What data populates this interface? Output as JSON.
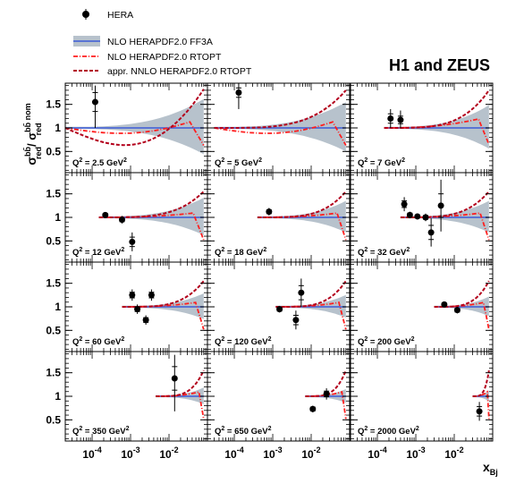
{
  "chart_data": {
    "type": "scatter",
    "title": "H1 and ZEUS",
    "legend": [
      {
        "label": "HERA",
        "style": "marker"
      },
      {
        "label": "NLO HERAPDF2.0 FF3A",
        "style": "band"
      },
      {
        "label": "NLO HERAPDF2.0 RTOPT",
        "style": "dashdot"
      },
      {
        "label": "appr. NNLO HERAPDF2.0 RTOPT",
        "style": "dashed"
      }
    ],
    "ylabel": {
      "sigma": "σ",
      "sup_num": "bb̄",
      "sub_num": "red",
      "slash": "/ σ",
      "sup_den": "bb̄ nom",
      "sub_den": "red"
    },
    "xlabel": {
      "main": "x",
      "sub": "Bj"
    },
    "x_scale": "log",
    "xlim": [
      2e-05,
      0.1
    ],
    "ylim": [
      0.05,
      1.95
    ],
    "y_ticks": [
      "0.5",
      "1",
      "1.5"
    ],
    "x_ticks": [
      {
        "base": "10",
        "exp": "-4"
      },
      {
        "base": "10",
        "exp": "-3"
      },
      {
        "base": "10",
        "exp": "-2"
      }
    ],
    "colors": {
      "band": "#b7c2cc",
      "central": "#3b5bd6",
      "nlo_rtopt": "#ff1f1f",
      "nnlo_rtopt": "#b3001b",
      "data": "#000000"
    },
    "panels": [
      {
        "label_pre": "Q",
        "label_sup": "2",
        "label_post": " = 2.5 GeV",
        "label_unit_sup": "2",
        "points": [
          {
            "x": 0.00012,
            "y": 1.55,
            "err_lo": 0.55,
            "err_hi": 0.35,
            "stat": 0.2
          }
        ]
      },
      {
        "label_pre": "Q",
        "label_sup": "2",
        "label_post": " = 5 GeV",
        "label_unit_sup": "2",
        "points": [
          {
            "x": 0.00013,
            "y": 1.75,
            "err_lo": 0.35,
            "err_hi": 0.2,
            "stat": 0.1
          }
        ]
      },
      {
        "label_pre": "Q",
        "label_sup": "2",
        "label_post": " = 7 GeV",
        "label_unit_sup": "2",
        "points": [
          {
            "x": 0.00022,
            "y": 1.2,
            "err_lo": 0.2,
            "err_hi": 0.2,
            "stat": 0.1
          },
          {
            "x": 0.0004,
            "y": 1.17,
            "err_lo": 0.18,
            "err_hi": 0.2,
            "stat": 0.08
          }
        ]
      },
      {
        "label_pre": "Q",
        "label_sup": "2",
        "label_post": " = 12 GeV",
        "label_unit_sup": "2",
        "points": [
          {
            "x": 0.00022,
            "y": 1.05,
            "err_lo": 0.06,
            "err_hi": 0.06,
            "stat": 0.03
          },
          {
            "x": 0.0006,
            "y": 0.95,
            "err_lo": 0.08,
            "err_hi": 0.08,
            "stat": 0.04
          },
          {
            "x": 0.0011,
            "y": 0.48,
            "err_lo": 0.2,
            "err_hi": 0.2,
            "stat": 0.1
          }
        ]
      },
      {
        "label_pre": "Q",
        "label_sup": "2",
        "label_post": " = 18 GeV",
        "label_unit_sup": "2",
        "points": [
          {
            "x": 0.0008,
            "y": 1.12,
            "err_lo": 0.08,
            "err_hi": 0.08,
            "stat": 0.04
          }
        ]
      },
      {
        "label_pre": "Q",
        "label_sup": "2",
        "label_post": " = 32 GeV",
        "label_unit_sup": "2",
        "points": [
          {
            "x": 0.0005,
            "y": 1.28,
            "err_lo": 0.15,
            "err_hi": 0.15,
            "stat": 0.07
          },
          {
            "x": 0.0007,
            "y": 1.05,
            "err_lo": 0.07,
            "err_hi": 0.07,
            "stat": 0.04
          },
          {
            "x": 0.0011,
            "y": 1.02,
            "err_lo": 0.06,
            "err_hi": 0.06,
            "stat": 0.03
          },
          {
            "x": 0.0018,
            "y": 1.0,
            "err_lo": 0.08,
            "err_hi": 0.08,
            "stat": 0.04
          },
          {
            "x": 0.0025,
            "y": 0.68,
            "err_lo": 0.3,
            "err_hi": 0.3,
            "stat": 0.15
          },
          {
            "x": 0.0045,
            "y": 1.25,
            "err_lo": 0.55,
            "err_hi": 0.55,
            "stat": 0.25
          }
        ]
      },
      {
        "label_pre": "Q",
        "label_sup": "2",
        "label_post": " = 60 GeV",
        "label_unit_sup": "2",
        "points": [
          {
            "x": 0.0011,
            "y": 1.25,
            "err_lo": 0.12,
            "err_hi": 0.12,
            "stat": 0.06
          },
          {
            "x": 0.0015,
            "y": 0.95,
            "err_lo": 0.1,
            "err_hi": 0.1,
            "stat": 0.05
          },
          {
            "x": 0.0025,
            "y": 0.72,
            "err_lo": 0.1,
            "err_hi": 0.1,
            "stat": 0.05
          },
          {
            "x": 0.0035,
            "y": 1.25,
            "err_lo": 0.12,
            "err_hi": 0.12,
            "stat": 0.06
          }
        ]
      },
      {
        "label_pre": "Q",
        "label_sup": "2",
        "label_post": " = 120 GeV",
        "label_unit_sup": "2",
        "points": [
          {
            "x": 0.0015,
            "y": 0.95,
            "err_lo": 0.07,
            "err_hi": 0.07,
            "stat": 0.04
          },
          {
            "x": 0.004,
            "y": 0.72,
            "err_lo": 0.2,
            "err_hi": 0.2,
            "stat": 0.1
          },
          {
            "x": 0.0055,
            "y": 1.3,
            "err_lo": 0.3,
            "err_hi": 0.3,
            "stat": 0.15
          }
        ]
      },
      {
        "label_pre": "Q",
        "label_sup": "2",
        "label_post": " = 200 GeV",
        "label_unit_sup": "2",
        "points": [
          {
            "x": 0.0055,
            "y": 1.05,
            "err_lo": 0.05,
            "err_hi": 0.05,
            "stat": 0.03
          },
          {
            "x": 0.012,
            "y": 0.93,
            "err_lo": 0.07,
            "err_hi": 0.07,
            "stat": 0.04
          }
        ]
      },
      {
        "label_pre": "Q",
        "label_sup": "2",
        "label_post": " = 350 GeV",
        "label_unit_sup": "2",
        "points": [
          {
            "x": 0.014,
            "y": 1.38,
            "err_lo": 0.7,
            "err_hi": 0.5,
            "stat": 0.25
          }
        ]
      },
      {
        "label_pre": "Q",
        "label_sup": "2",
        "label_post": " = 650 GeV",
        "label_unit_sup": "2",
        "points": [
          {
            "x": 0.011,
            "y": 0.73,
            "err_lo": 0.07,
            "err_hi": 0.07,
            "stat": 0.04
          },
          {
            "x": 0.025,
            "y": 1.05,
            "err_lo": 0.12,
            "err_hi": 0.12,
            "stat": 0.06
          }
        ]
      },
      {
        "label_pre": "Q",
        "label_sup": "2",
        "label_post": " = 2000 GeV",
        "label_unit_sup": "2",
        "points": [
          {
            "x": 0.045,
            "y": 0.68,
            "err_lo": 0.2,
            "err_hi": 0.2,
            "stat": 0.1
          }
        ]
      }
    ]
  }
}
